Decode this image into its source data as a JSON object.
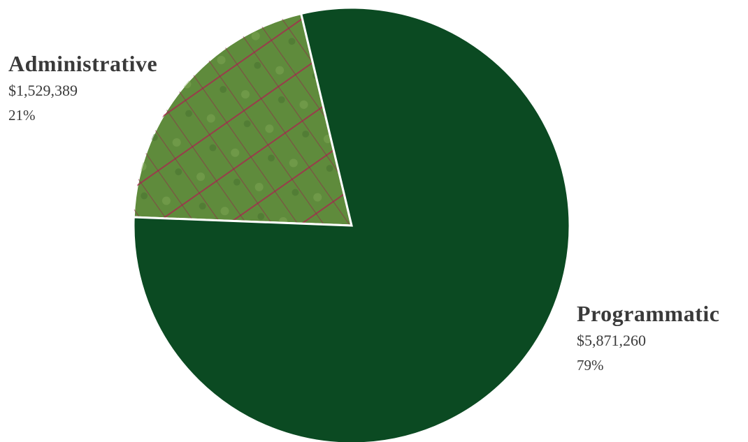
{
  "chart_data": {
    "type": "pie",
    "categories": [
      "Administrative",
      "Programmatic"
    ],
    "values": [
      1529389,
      5871260
    ],
    "value_labels": [
      "$1,529,389",
      "$5,871,260"
    ],
    "percents": [
      21,
      79
    ],
    "percent_labels": [
      "21%",
      "79%"
    ],
    "colors": [
      "#5f8b3c",
      "#0b4a22"
    ]
  }
}
